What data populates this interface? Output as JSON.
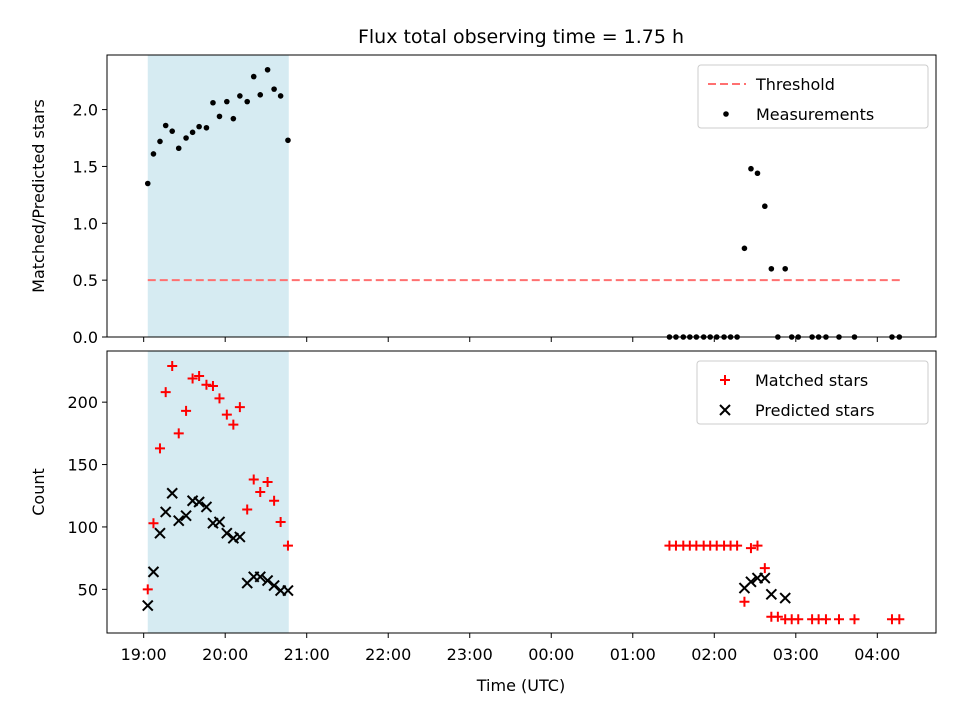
{
  "chart_data": {
    "title": "Flux total observing time = 1.75 h",
    "xlabel": "Time (UTC)",
    "x_tick_labels": [
      "19:00",
      "20:00",
      "21:00",
      "22:00",
      "23:00",
      "00:00",
      "01:00",
      "02:00",
      "03:00",
      "04:00"
    ],
    "x_tick_hours": [
      19,
      20,
      21,
      22,
      23,
      24,
      25,
      26,
      27,
      28
    ],
    "xlim_hours": [
      18.55,
      28.72
    ],
    "shaded_span_hours": [
      19.05,
      20.78
    ],
    "shade_color": "#add8e6",
    "panels": [
      {
        "type": "scatter",
        "ylabel": "Matched/Predicted stars",
        "ylim": [
          0,
          2.48
        ],
        "y_ticks": [
          0.0,
          0.5,
          1.0,
          1.5,
          2.0
        ],
        "y_tick_labels": [
          "0.0",
          "0.5",
          "1.0",
          "1.5",
          "2.0"
        ],
        "threshold": {
          "name": "Threshold",
          "value": 0.5,
          "x_hours": [
            19.05,
            28.28
          ],
          "color": "#ff7070"
        },
        "series": [
          {
            "name": "Measurements",
            "marker": "dot",
            "color": "#000000",
            "points": [
              [
                19.05,
                1.35
              ],
              [
                19.12,
                1.61
              ],
              [
                19.2,
                1.72
              ],
              [
                19.27,
                1.86
              ],
              [
                19.35,
                1.81
              ],
              [
                19.43,
                1.66
              ],
              [
                19.52,
                1.75
              ],
              [
                19.6,
                1.8
              ],
              [
                19.68,
                1.85
              ],
              [
                19.77,
                1.84
              ],
              [
                19.85,
                2.06
              ],
              [
                19.93,
                1.94
              ],
              [
                20.02,
                2.07
              ],
              [
                20.1,
                1.92
              ],
              [
                20.18,
                2.12
              ],
              [
                20.27,
                2.07
              ],
              [
                20.35,
                2.29
              ],
              [
                20.43,
                2.13
              ],
              [
                20.52,
                2.35
              ],
              [
                20.6,
                2.18
              ],
              [
                20.68,
                2.12
              ],
              [
                20.77,
                1.73
              ],
              [
                25.45,
                0
              ],
              [
                25.53,
                0
              ],
              [
                25.62,
                0
              ],
              [
                25.7,
                0
              ],
              [
                25.78,
                0
              ],
              [
                25.87,
                0
              ],
              [
                25.95,
                0
              ],
              [
                26.03,
                0
              ],
              [
                26.12,
                0
              ],
              [
                26.2,
                0
              ],
              [
                26.28,
                0
              ],
              [
                26.37,
                0.78
              ],
              [
                26.45,
                1.48
              ],
              [
                26.53,
                1.44
              ],
              [
                26.62,
                1.15
              ],
              [
                26.7,
                0.6
              ],
              [
                26.78,
                0
              ],
              [
                26.87,
                0.6
              ],
              [
                26.95,
                0
              ],
              [
                27.03,
                0
              ],
              [
                27.2,
                0
              ],
              [
                27.28,
                0
              ],
              [
                27.37,
                0
              ],
              [
                27.53,
                0
              ],
              [
                27.72,
                0
              ],
              [
                28.18,
                0
              ],
              [
                28.27,
                0
              ]
            ]
          }
        ]
      },
      {
        "type": "scatter",
        "ylabel": "Count",
        "ylim": [
          15,
          241
        ],
        "y_ticks": [
          50,
          100,
          150,
          200
        ],
        "y_tick_labels": [
          "50",
          "100",
          "150",
          "200"
        ],
        "series": [
          {
            "name": "Matched stars",
            "marker": "plus",
            "color": "#ff0000",
            "points": [
              [
                19.05,
                50
              ],
              [
                19.12,
                103
              ],
              [
                19.2,
                163
              ],
              [
                19.27,
                208
              ],
              [
                19.35,
                229
              ],
              [
                19.43,
                175
              ],
              [
                19.52,
                193
              ],
              [
                19.6,
                219
              ],
              [
                19.68,
                221
              ],
              [
                19.77,
                214
              ],
              [
                19.85,
                213
              ],
              [
                19.93,
                203
              ],
              [
                20.02,
                190
              ],
              [
                20.1,
                182
              ],
              [
                20.18,
                196
              ],
              [
                20.27,
                114
              ],
              [
                20.35,
                138
              ],
              [
                20.43,
                128
              ],
              [
                20.52,
                136
              ],
              [
                20.6,
                121
              ],
              [
                20.68,
                104
              ],
              [
                20.77,
                85
              ],
              [
                25.45,
                85
              ],
              [
                25.53,
                85
              ],
              [
                25.62,
                85
              ],
              [
                25.7,
                85
              ],
              [
                25.78,
                85
              ],
              [
                25.87,
                85
              ],
              [
                25.95,
                85
              ],
              [
                26.03,
                85
              ],
              [
                26.12,
                85
              ],
              [
                26.2,
                85
              ],
              [
                26.28,
                85
              ],
              [
                26.37,
                40
              ],
              [
                26.45,
                83
              ],
              [
                26.53,
                85
              ],
              [
                26.62,
                67
              ],
              [
                26.7,
                28
              ],
              [
                26.78,
                28
              ],
              [
                26.87,
                26
              ],
              [
                26.95,
                26
              ],
              [
                27.03,
                26
              ],
              [
                27.2,
                26
              ],
              [
                27.28,
                26
              ],
              [
                27.37,
                26
              ],
              [
                27.53,
                26
              ],
              [
                27.72,
                26
              ],
              [
                28.18,
                26
              ],
              [
                28.27,
                26
              ]
            ]
          },
          {
            "name": "Predicted stars",
            "marker": "x",
            "color": "#000000",
            "points": [
              [
                19.05,
                37
              ],
              [
                19.12,
                64
              ],
              [
                19.2,
                95
              ],
              [
                19.27,
                112
              ],
              [
                19.35,
                127
              ],
              [
                19.43,
                105
              ],
              [
                19.52,
                109
              ],
              [
                19.6,
                121
              ],
              [
                19.68,
                120
              ],
              [
                19.77,
                116
              ],
              [
                19.85,
                103
              ],
              [
                19.93,
                104
              ],
              [
                20.02,
                95
              ],
              [
                20.1,
                91
              ],
              [
                20.18,
                92
              ],
              [
                20.27,
                55
              ],
              [
                20.35,
                60
              ],
              [
                20.43,
                60
              ],
              [
                20.52,
                57
              ],
              [
                20.6,
                53
              ],
              [
                20.68,
                49
              ],
              [
                20.77,
                49
              ],
              [
                26.37,
                51
              ],
              [
                26.45,
                56
              ],
              [
                26.53,
                59
              ],
              [
                26.62,
                59
              ],
              [
                26.7,
                46
              ],
              [
                26.87,
                43
              ]
            ]
          }
        ]
      }
    ]
  }
}
